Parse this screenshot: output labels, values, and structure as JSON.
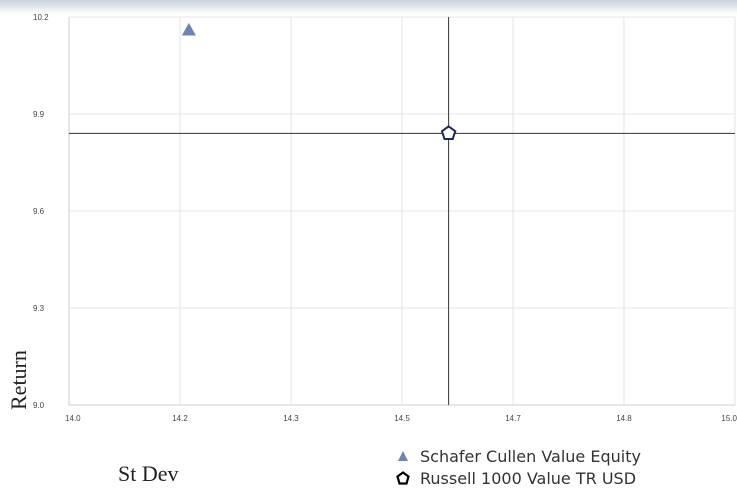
{
  "chart_data": {
    "type": "scatter",
    "title": "",
    "xlabel": "St Dev",
    "ylabel": "Return",
    "xlim": [
      14.0,
      15.0
    ],
    "ylim": [
      9.0,
      10.2
    ],
    "x_ticks": [
      "14.0",
      "14.2",
      "14.3",
      "14.5",
      "14.7",
      "14.8",
      "15.0"
    ],
    "x_tick_values": [
      14.0,
      14.1667,
      14.3333,
      14.5,
      14.6667,
      14.8333,
      15.0
    ],
    "y_ticks": [
      "9.0",
      "9.3",
      "9.6",
      "9.9",
      "10.2"
    ],
    "y_tick_values": [
      9.0,
      9.3,
      9.6,
      9.9,
      10.2
    ],
    "grid": true,
    "legend_position": "bottom-right",
    "series": [
      {
        "name": "Schafer Cullen Value Equity",
        "marker": "triangle",
        "color": "#6a86b4",
        "x": [
          14.18
        ],
        "y": [
          10.16
        ]
      },
      {
        "name": "Russell 1000 Value TR USD",
        "marker": "pentagon",
        "color": "#1a2a5a",
        "x": [
          14.57
        ],
        "y": [
          9.84
        ]
      }
    ],
    "crosshair": {
      "x": 14.57,
      "y": 9.84
    }
  }
}
